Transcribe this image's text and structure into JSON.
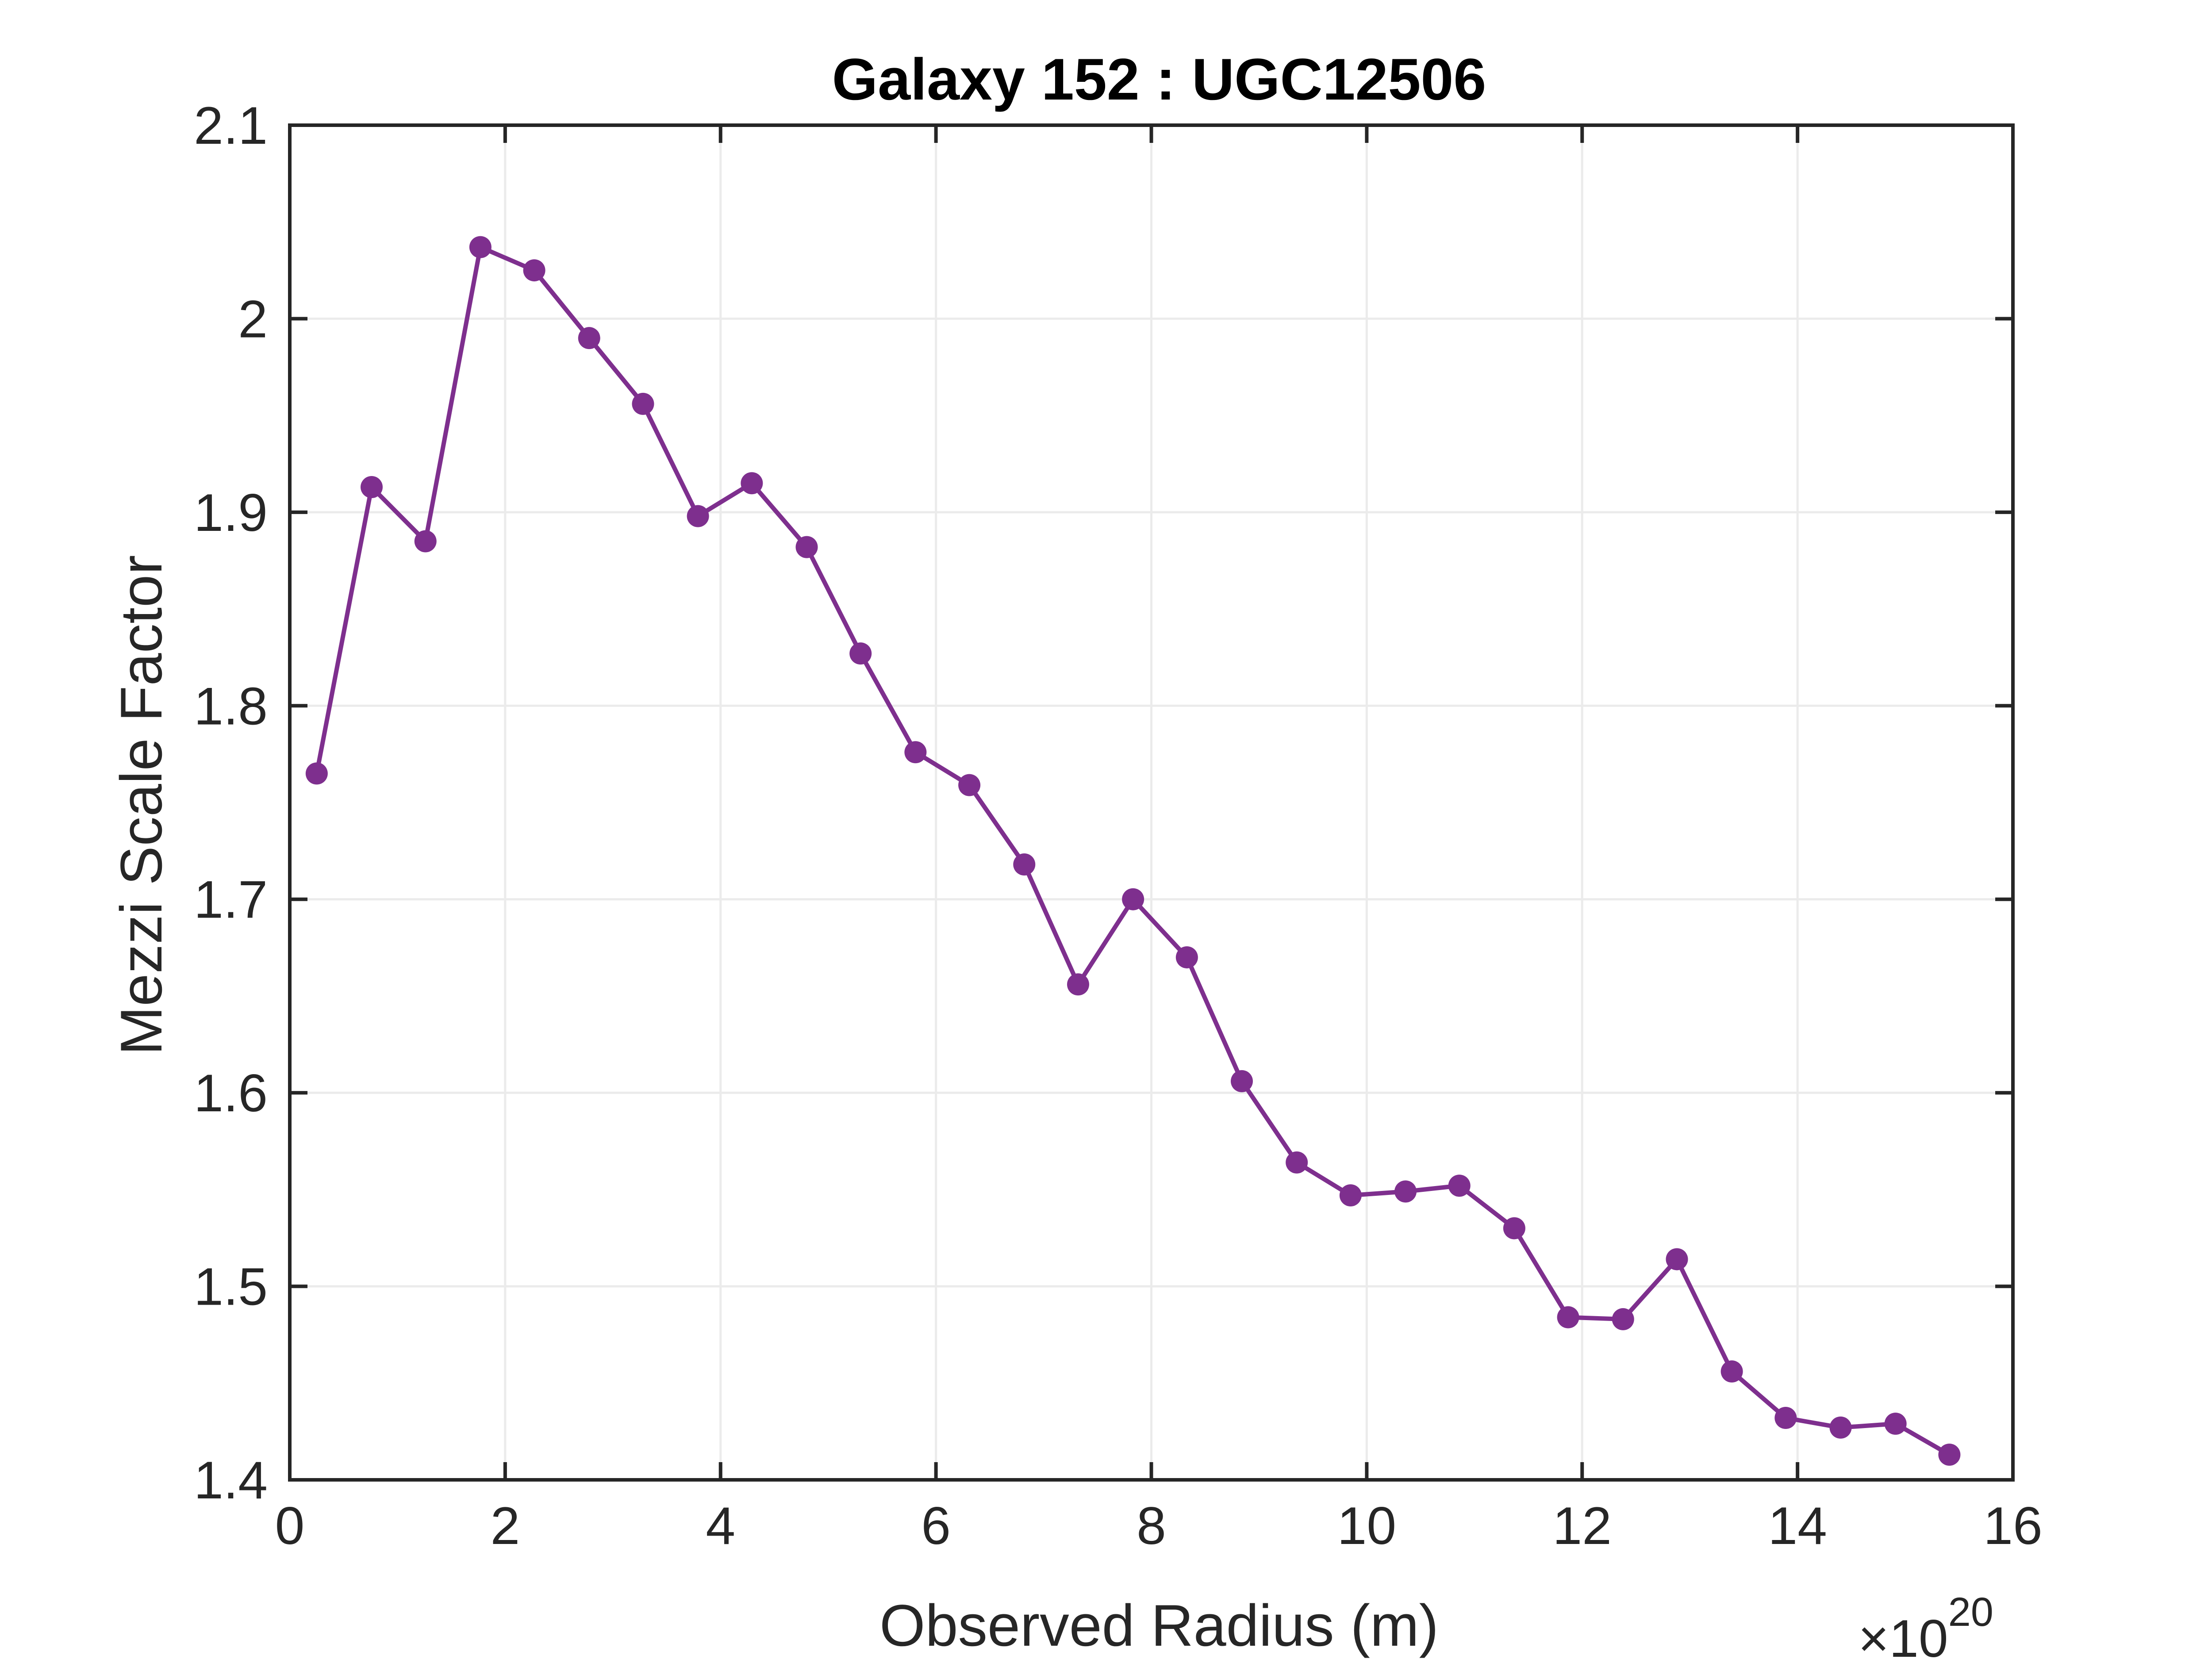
{
  "chart_data": {
    "type": "line",
    "title": "Galaxy 152 : UGC12506",
    "xlabel": "Observed Radius (m)",
    "ylabel": "Mezzi Scale Factor",
    "x_exponent_label": {
      "base": "×10",
      "power": "20"
    },
    "x_multiplier": 1e+20,
    "xlim": [
      0,
      16
    ],
    "ylim": [
      1.4,
      2.1
    ],
    "x_ticks": [
      0,
      2,
      4,
      6,
      8,
      10,
      12,
      14,
      16
    ],
    "y_ticks": [
      1.4,
      1.5,
      1.6,
      1.7,
      1.8,
      1.9,
      2.0,
      2.1
    ],
    "x_tick_labels": [
      "0",
      "2",
      "4",
      "6",
      "8",
      "10",
      "12",
      "14",
      "16"
    ],
    "y_tick_labels": [
      "1.4",
      "1.5",
      "1.6",
      "1.7",
      "1.8",
      "1.9",
      "2",
      "2.1"
    ],
    "grid": true,
    "colors": {
      "series": "#7e2f8e",
      "axis": "#262626",
      "grid": "#ebebeb"
    },
    "series": [
      {
        "marker": "circle",
        "x": [
          0.25,
          0.76,
          1.26,
          1.77,
          2.27,
          2.78,
          3.28,
          3.79,
          4.29,
          4.8,
          5.3,
          5.81,
          6.31,
          6.82,
          7.32,
          7.83,
          8.33,
          8.84,
          9.35,
          9.85,
          10.36,
          10.86,
          11.37,
          11.87,
          12.38,
          12.88,
          13.39,
          13.89,
          14.4,
          14.91,
          15.41
        ],
        "values": [
          1.765,
          1.913,
          1.885,
          2.037,
          2.025,
          1.99,
          1.956,
          1.898,
          1.915,
          1.882,
          1.827,
          1.776,
          1.759,
          1.718,
          1.656,
          1.7,
          1.67,
          1.606,
          1.564,
          1.547,
          1.549,
          1.552,
          1.53,
          1.484,
          1.483,
          1.514,
          1.456,
          1.432,
          1.427,
          1.429,
          1.413
        ]
      }
    ]
  }
}
